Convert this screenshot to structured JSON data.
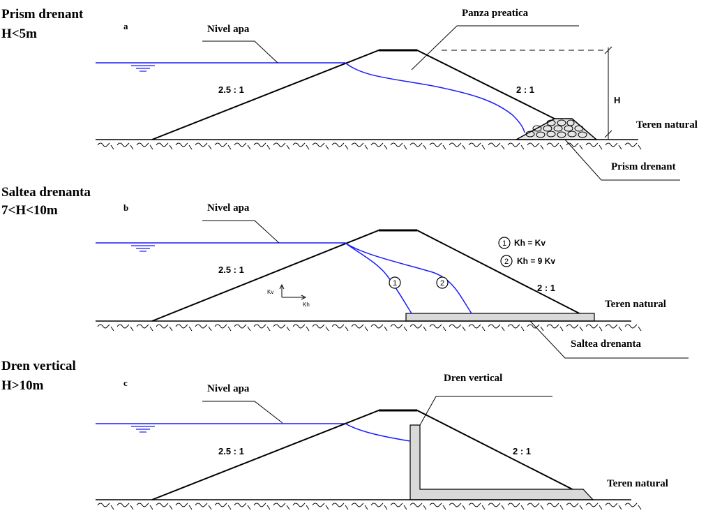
{
  "colors": {
    "water": "#1a1aff",
    "line": "#000000",
    "drain_fill": "#d9d9d9"
  },
  "panels": [
    {
      "id": "a",
      "heading_line1": "Prism drenant",
      "heading_line2": "H<5m",
      "letter": "a",
      "water_label": "Nivel apa",
      "slope_up": "2.5 : 1",
      "slope_down": "2 : 1",
      "callout_top": "Panza preatica",
      "height_label": "H",
      "ground_label": "Teren natural",
      "drain_label": "Prism drenant"
    },
    {
      "id": "b",
      "heading_line1": "Saltea drenanta",
      "heading_line2": "7<H<10m",
      "letter": "b",
      "water_label": "Nivel apa",
      "slope_up": "2.5 : 1",
      "slope_down": "2 : 1",
      "ground_label": "Teren natural",
      "drain_label": "Saltea drenanta",
      "legend": [
        {
          "num": "1",
          "text": "Kh = Kv"
        },
        {
          "num": "2",
          "text": "Kh = 9 Kv"
        }
      ],
      "axis_v": "Kv",
      "axis_h": "Kh"
    },
    {
      "id": "c",
      "heading_line1": "Dren vertical",
      "heading_line2": "H>10m",
      "letter": "c",
      "water_label": "Nivel apa",
      "slope_up": "2.5 : 1",
      "slope_down": "2 : 1",
      "ground_label": "Teren natural",
      "drain_label": "Dren vertical"
    }
  ]
}
